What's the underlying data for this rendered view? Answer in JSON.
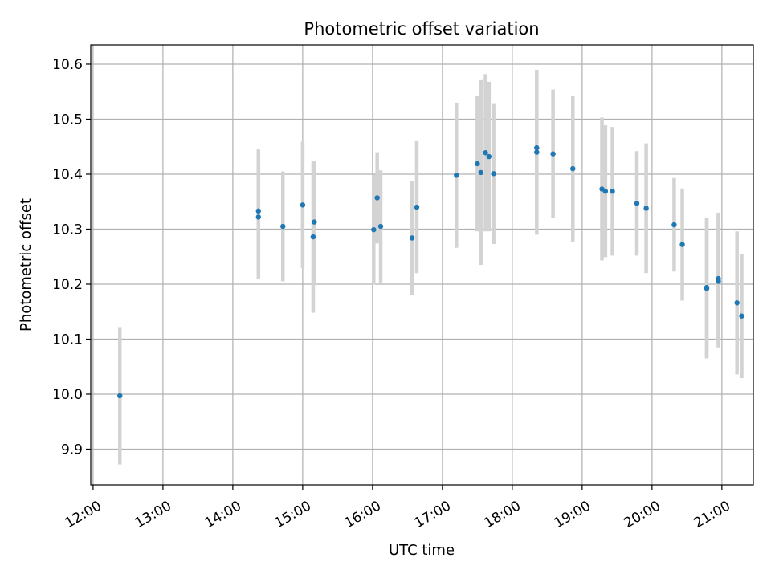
{
  "chart_data": {
    "type": "scatter",
    "title": "Photometric offset variation",
    "xlabel": "UTC time",
    "ylabel": "Photometric offset",
    "xlim": [
      "11:58",
      "21:27"
    ],
    "ylim": [
      9.835,
      10.635
    ],
    "x_ticks": [
      "12:00",
      "13:00",
      "14:00",
      "15:00",
      "16:00",
      "17:00",
      "18:00",
      "19:00",
      "20:00",
      "21:00"
    ],
    "y_ticks": [
      9.9,
      10.0,
      10.1,
      10.2,
      10.3,
      10.4,
      10.5,
      10.6
    ],
    "grid": true,
    "colors": {
      "point": "#1f77b4",
      "errorbar": "#d3d3d3",
      "grid": "#b0b0b0"
    },
    "points": [
      {
        "t": "12:23",
        "y": 9.997,
        "err": 0.125
      },
      {
        "t": "14:22",
        "y": 10.333,
        "err": 0.112
      },
      {
        "t": "14:22",
        "y": 10.322,
        "err": 0.112
      },
      {
        "t": "14:43",
        "y": 10.305,
        "err": 0.1
      },
      {
        "t": "15:00",
        "y": 10.344,
        "err": 0.115
      },
      {
        "t": "15:09",
        "y": 10.286,
        "err": 0.138
      },
      {
        "t": "15:10",
        "y": 10.313,
        "err": 0.11
      },
      {
        "t": "16:01",
        "y": 10.299,
        "err": 0.1
      },
      {
        "t": "16:04",
        "y": 10.357,
        "err": 0.083
      },
      {
        "t": "16:07",
        "y": 10.305,
        "err": 0.102
      },
      {
        "t": "16:34",
        "y": 10.284,
        "err": 0.103
      },
      {
        "t": "16:38",
        "y": 10.34,
        "err": 0.12
      },
      {
        "t": "17:12",
        "y": 10.398,
        "err": 0.132
      },
      {
        "t": "17:30",
        "y": 10.419,
        "err": 0.123
      },
      {
        "t": "17:33",
        "y": 10.403,
        "err": 0.168
      },
      {
        "t": "17:37",
        "y": 10.439,
        "err": 0.143
      },
      {
        "t": "17:40",
        "y": 10.432,
        "err": 0.136
      },
      {
        "t": "17:44",
        "y": 10.401,
        "err": 0.128
      },
      {
        "t": "18:21",
        "y": 10.448,
        "err": 0.132
      },
      {
        "t": "18:21",
        "y": 10.44,
        "err": 0.15
      },
      {
        "t": "18:35",
        "y": 10.437,
        "err": 0.117
      },
      {
        "t": "18:52",
        "y": 10.41,
        "err": 0.133
      },
      {
        "t": "19:17",
        "y": 10.373,
        "err": 0.13
      },
      {
        "t": "19:20",
        "y": 10.369,
        "err": 0.12
      },
      {
        "t": "19:26",
        "y": 10.369,
        "err": 0.117
      },
      {
        "t": "19:47",
        "y": 10.347,
        "err": 0.095
      },
      {
        "t": "19:55",
        "y": 10.338,
        "err": 0.118
      },
      {
        "t": "20:19",
        "y": 10.308,
        "err": 0.085
      },
      {
        "t": "20:26",
        "y": 10.272,
        "err": 0.102
      },
      {
        "t": "20:47",
        "y": 10.192,
        "err": 0.127
      },
      {
        "t": "20:47",
        "y": 10.194,
        "err": 0.127
      },
      {
        "t": "20:57",
        "y": 10.21,
        "err": 0.12
      },
      {
        "t": "20:57",
        "y": 10.205,
        "err": 0.12
      },
      {
        "t": "21:13",
        "y": 10.166,
        "err": 0.13
      },
      {
        "t": "21:17",
        "y": 10.142,
        "err": 0.113
      }
    ]
  }
}
